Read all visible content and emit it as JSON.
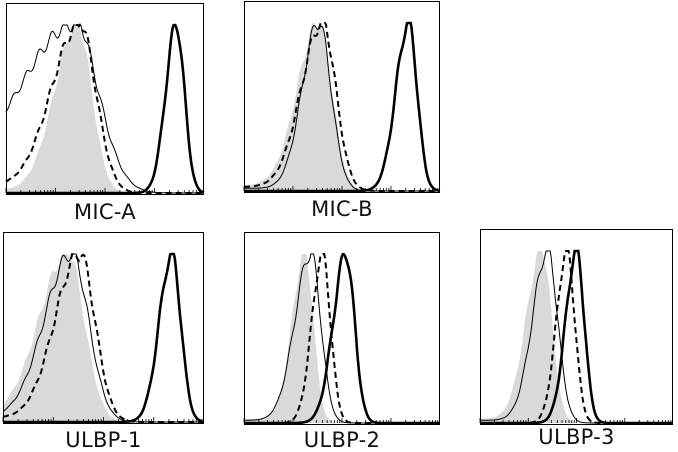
{
  "chart_data": [
    {
      "type": "area",
      "title": "MIC-A",
      "x_scale": "log",
      "series": [
        {
          "role": "shaded-filled",
          "peak_x": 0.36,
          "width": 0.085,
          "skew": 0.35,
          "floor": 0.02
        },
        {
          "role": "thin-solid",
          "peak_x": 0.34,
          "width": 0.16,
          "skew": 0.55,
          "floor": 0.22
        },
        {
          "role": "dashed",
          "peak_x": 0.37,
          "width": 0.1,
          "skew": 0.4,
          "floor": 0.05
        },
        {
          "role": "thick-solid",
          "peak_x": 0.86,
          "width": 0.045,
          "skew": 0.2,
          "floor": 0.0
        }
      ]
    },
    {
      "type": "area",
      "title": "MIC-B",
      "x_scale": "log",
      "series": [
        {
          "role": "shaded-filled",
          "peak_x": 0.38,
          "width": 0.08,
          "skew": 0.35,
          "floor": 0.04
        },
        {
          "role": "thin-solid",
          "peak_x": 0.38,
          "width": 0.07,
          "skew": 0.2,
          "floor": 0.02
        },
        {
          "role": "dashed",
          "peak_x": 0.4,
          "width": 0.08,
          "skew": 0.35,
          "floor": 0.03
        },
        {
          "role": "thick-solid",
          "peak_x": 0.84,
          "width": 0.05,
          "skew": 0.3,
          "floor": 0.0
        }
      ]
    },
    {
      "type": "area",
      "title": "ULBP-1",
      "x_scale": "log",
      "series": [
        {
          "role": "shaded-filled",
          "peak_x": 0.32,
          "width": 0.1,
          "skew": 0.4,
          "floor": 0.05
        },
        {
          "role": "thin-solid",
          "peak_x": 0.34,
          "width": 0.1,
          "skew": 0.35,
          "floor": 0.03
        },
        {
          "role": "dashed",
          "peak_x": 0.38,
          "width": 0.09,
          "skew": 0.35,
          "floor": 0.03
        },
        {
          "role": "thick-solid",
          "peak_x": 0.84,
          "width": 0.05,
          "skew": 0.25,
          "floor": 0.0
        }
      ]
    },
    {
      "type": "area",
      "title": "ULBP-2",
      "x_scale": "log",
      "series": [
        {
          "role": "shaded-filled",
          "peak_x": 0.31,
          "width": 0.05,
          "skew": 0.3,
          "floor": 0.03
        },
        {
          "role": "thin-solid",
          "peak_x": 0.34,
          "width": 0.06,
          "skew": 0.35,
          "floor": 0.02
        },
        {
          "role": "dashed",
          "peak_x": 0.4,
          "width": 0.045,
          "skew": 0.2,
          "floor": 0.0
        },
        {
          "role": "thick-solid",
          "peak_x": 0.52,
          "width": 0.05,
          "skew": 0.3,
          "floor": 0.0
        }
      ]
    },
    {
      "type": "area",
      "title": "ULBP-3",
      "x_scale": "log",
      "series": [
        {
          "role": "shaded-filled",
          "peak_x": 0.32,
          "width": 0.06,
          "skew": 0.35,
          "floor": 0.03
        },
        {
          "role": "thin-solid",
          "peak_x": 0.35,
          "width": 0.06,
          "skew": 0.3,
          "floor": 0.02
        },
        {
          "role": "dashed",
          "peak_x": 0.45,
          "width": 0.045,
          "skew": 0.2,
          "floor": 0.0
        },
        {
          "role": "thick-solid",
          "peak_x": 0.5,
          "width": 0.045,
          "skew": 0.25,
          "floor": 0.0
        }
      ]
    }
  ],
  "colors": {
    "shaded_fill": "#d9d9d9",
    "line": "#000000",
    "frame": "#000000"
  }
}
